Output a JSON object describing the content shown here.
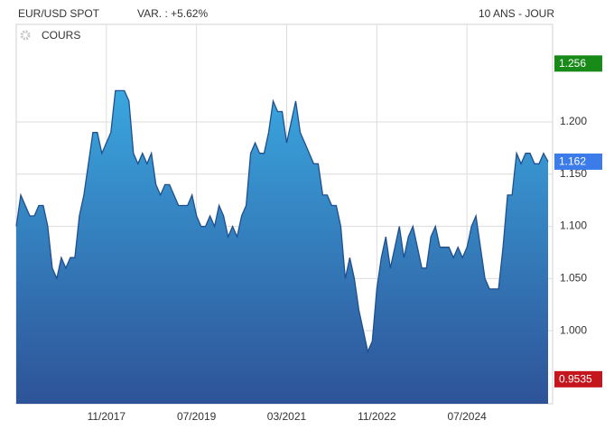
{
  "chart_data": {
    "type": "area",
    "title": "EUR/USD SPOT",
    "subtitle": "VAR. : +5.62%",
    "period": "10 ANS - JOUR",
    "xlim": [
      "2016-03",
      "2026-02"
    ],
    "xticks": [
      {
        "value": "2017-11",
        "label": "11/2017"
      },
      {
        "value": "2019-07",
        "label": "07/2019"
      },
      {
        "value": "2021-03",
        "label": "03/2021"
      },
      {
        "value": "2022-11",
        "label": "11/2022"
      },
      {
        "value": "2024-07",
        "label": "07/2024"
      }
    ],
    "ylim": [
      0.93,
      1.2935
    ],
    "yticks": [
      {
        "value": 1.0,
        "label": "1.000"
      },
      {
        "value": 1.05,
        "label": "1.050"
      },
      {
        "value": 1.1,
        "label": "1.100"
      },
      {
        "value": 1.15,
        "label": "1.150"
      },
      {
        "value": 1.2,
        "label": "1.200"
      }
    ],
    "grid": true,
    "x": [
      "2016-03",
      "2016-04",
      "2016-05",
      "2016-06",
      "2016-07",
      "2016-08",
      "2016-09",
      "2016-10",
      "2016-11",
      "2016-12",
      "2017-01",
      "2017-02",
      "2017-03",
      "2017-04",
      "2017-05",
      "2017-06",
      "2017-07",
      "2017-08",
      "2017-09",
      "2017-10",
      "2017-11",
      "2017-12",
      "2018-01",
      "2018-02",
      "2018-03",
      "2018-04",
      "2018-05",
      "2018-06",
      "2018-07",
      "2018-08",
      "2018-09",
      "2018-10",
      "2018-11",
      "2018-12",
      "2019-01",
      "2019-02",
      "2019-03",
      "2019-04",
      "2019-05",
      "2019-06",
      "2019-07",
      "2019-08",
      "2019-09",
      "2019-10",
      "2019-11",
      "2019-12",
      "2020-01",
      "2020-02",
      "2020-03",
      "2020-04",
      "2020-05",
      "2020-06",
      "2020-07",
      "2020-08",
      "2020-09",
      "2020-10",
      "2020-11",
      "2020-12",
      "2021-01",
      "2021-02",
      "2021-03",
      "2021-04",
      "2021-05",
      "2021-06",
      "2021-07",
      "2021-08",
      "2021-09",
      "2021-10",
      "2021-11",
      "2021-12",
      "2022-01",
      "2022-02",
      "2022-03",
      "2022-04",
      "2022-05",
      "2022-06",
      "2022-07",
      "2022-08",
      "2022-09",
      "2022-10",
      "2022-11",
      "2022-12",
      "2023-01",
      "2023-02",
      "2023-03",
      "2023-04",
      "2023-05",
      "2023-06",
      "2023-07",
      "2023-08",
      "2023-09",
      "2023-10",
      "2023-11",
      "2023-12",
      "2024-01",
      "2024-02",
      "2024-03",
      "2024-04",
      "2024-05",
      "2024-06",
      "2024-07",
      "2024-08",
      "2024-09",
      "2024-10",
      "2024-11",
      "2024-12",
      "2025-01",
      "2025-02",
      "2025-03",
      "2025-04",
      "2025-05",
      "2025-06",
      "2025-07",
      "2025-08",
      "2025-09",
      "2025-10",
      "2025-11",
      "2025-12",
      "2026-01"
    ],
    "series": [
      {
        "name": "COURS",
        "color": "#1f4f8f",
        "fill_top": "#3aa6de",
        "fill_bottom": "#2e5398",
        "values": [
          1.1,
          1.13,
          1.12,
          1.11,
          1.11,
          1.12,
          1.12,
          1.1,
          1.06,
          1.05,
          1.07,
          1.06,
          1.07,
          1.07,
          1.11,
          1.13,
          1.16,
          1.19,
          1.19,
          1.17,
          1.18,
          1.19,
          1.23,
          1.23,
          1.23,
          1.22,
          1.17,
          1.16,
          1.17,
          1.16,
          1.17,
          1.14,
          1.13,
          1.14,
          1.14,
          1.13,
          1.12,
          1.12,
          1.12,
          1.13,
          1.11,
          1.1,
          1.1,
          1.11,
          1.1,
          1.12,
          1.11,
          1.09,
          1.1,
          1.09,
          1.11,
          1.12,
          1.17,
          1.18,
          1.17,
          1.17,
          1.19,
          1.22,
          1.21,
          1.21,
          1.18,
          1.2,
          1.22,
          1.19,
          1.18,
          1.17,
          1.16,
          1.16,
          1.13,
          1.13,
          1.12,
          1.12,
          1.1,
          1.05,
          1.07,
          1.05,
          1.02,
          1.0,
          0.98,
          0.99,
          1.04,
          1.07,
          1.09,
          1.06,
          1.08,
          1.1,
          1.07,
          1.09,
          1.1,
          1.08,
          1.06,
          1.06,
          1.09,
          1.1,
          1.08,
          1.08,
          1.08,
          1.07,
          1.08,
          1.07,
          1.08,
          1.1,
          1.11,
          1.08,
          1.05,
          1.04,
          1.04,
          1.04,
          1.08,
          1.13,
          1.13,
          1.17,
          1.16,
          1.17,
          1.17,
          1.16,
          1.16,
          1.17,
          1.162
        ]
      }
    ],
    "price_labels": [
      {
        "value": 1.256,
        "color": "#178a17"
      },
      {
        "value": 1.162,
        "color": "#3b7bea"
      },
      {
        "value": 0.9535,
        "color": "#c4161c"
      }
    ]
  }
}
